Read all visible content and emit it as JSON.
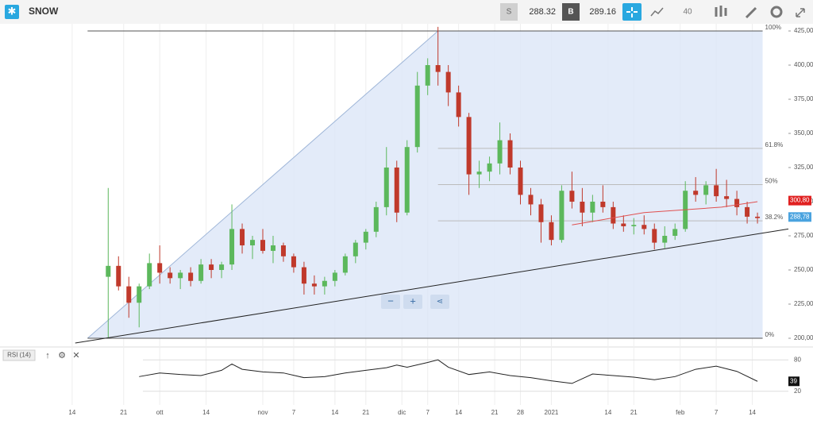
{
  "header": {
    "symbol": "SNOW",
    "sell_label": "S",
    "sell_price": 288.32,
    "buy_label": "B",
    "buy_price": 289.16,
    "interval": "40"
  },
  "chart": {
    "xlim": [
      0,
      153
    ],
    "ylim": [
      200,
      425
    ],
    "yticks": [
      {
        "value": 425,
        "label": "425,00"
      },
      {
        "value": 400,
        "label": "400,00"
      },
      {
        "value": 375,
        "label": "375,00"
      },
      {
        "value": 350,
        "label": "350,00"
      },
      {
        "value": 325,
        "label": "325,00"
      },
      {
        "value": 300,
        "label": "300,00"
      },
      {
        "value": 275,
        "label": "275,00"
      },
      {
        "value": 250,
        "label": "250,00"
      },
      {
        "value": 225,
        "label": "225,00"
      },
      {
        "value": 200,
        "label": "200,00"
      }
    ],
    "xticks": [
      {
        "value": 14,
        "label": "14"
      },
      {
        "value": 24,
        "label": "21"
      },
      {
        "value": 31,
        "label": "ott"
      },
      {
        "value": 40,
        "label": "14"
      },
      {
        "value": 51,
        "label": "nov"
      },
      {
        "value": 57,
        "label": "7"
      },
      {
        "value": 65,
        "label": "14"
      },
      {
        "value": 71,
        "label": "21"
      },
      {
        "value": 78,
        "label": "dic"
      },
      {
        "value": 83,
        "label": "7"
      },
      {
        "value": 89,
        "label": "14"
      },
      {
        "value": 96,
        "label": "21"
      },
      {
        "value": 101,
        "label": "28"
      },
      {
        "value": 107,
        "label": "2021"
      },
      {
        "value": 118,
        "label": "14"
      },
      {
        "value": 123,
        "label": "21"
      },
      {
        "value": 132,
        "label": "feb"
      },
      {
        "value": 139,
        "label": "7"
      },
      {
        "value": 146,
        "label": "14"
      }
    ],
    "candles": [
      {
        "x": 21,
        "o": 245,
        "h": 310,
        "l": 200,
        "c": 253
      },
      {
        "x": 23,
        "o": 253,
        "h": 260,
        "l": 235,
        "c": 238
      },
      {
        "x": 25,
        "o": 238,
        "h": 245,
        "l": 215,
        "c": 226
      },
      {
        "x": 27,
        "o": 226,
        "h": 240,
        "l": 208,
        "c": 238
      },
      {
        "x": 29,
        "o": 238,
        "h": 262,
        "l": 236,
        "c": 255
      },
      {
        "x": 31,
        "o": 255,
        "h": 268,
        "l": 240,
        "c": 248
      },
      {
        "x": 33,
        "o": 248,
        "h": 252,
        "l": 240,
        "c": 244
      },
      {
        "x": 35,
        "o": 244,
        "h": 250,
        "l": 236,
        "c": 248
      },
      {
        "x": 37,
        "o": 248,
        "h": 252,
        "l": 238,
        "c": 242
      },
      {
        "x": 39,
        "o": 242,
        "h": 258,
        "l": 240,
        "c": 254
      },
      {
        "x": 41,
        "o": 254,
        "h": 258,
        "l": 244,
        "c": 250
      },
      {
        "x": 43,
        "o": 250,
        "h": 256,
        "l": 244,
        "c": 254
      },
      {
        "x": 45,
        "o": 254,
        "h": 298,
        "l": 250,
        "c": 280
      },
      {
        "x": 47,
        "o": 280,
        "h": 284,
        "l": 262,
        "c": 268
      },
      {
        "x": 49,
        "o": 268,
        "h": 275,
        "l": 258,
        "c": 272
      },
      {
        "x": 51,
        "o": 272,
        "h": 280,
        "l": 262,
        "c": 264
      },
      {
        "x": 53,
        "o": 264,
        "h": 275,
        "l": 255,
        "c": 268
      },
      {
        "x": 55,
        "o": 268,
        "h": 270,
        "l": 256,
        "c": 260
      },
      {
        "x": 57,
        "o": 260,
        "h": 262,
        "l": 248,
        "c": 252
      },
      {
        "x": 59,
        "o": 252,
        "h": 256,
        "l": 232,
        "c": 240
      },
      {
        "x": 61,
        "o": 240,
        "h": 246,
        "l": 232,
        "c": 238
      },
      {
        "x": 63,
        "o": 238,
        "h": 245,
        "l": 232,
        "c": 242
      },
      {
        "x": 65,
        "o": 242,
        "h": 250,
        "l": 238,
        "c": 248
      },
      {
        "x": 67,
        "o": 248,
        "h": 262,
        "l": 246,
        "c": 260
      },
      {
        "x": 69,
        "o": 260,
        "h": 272,
        "l": 255,
        "c": 270
      },
      {
        "x": 71,
        "o": 270,
        "h": 280,
        "l": 265,
        "c": 278
      },
      {
        "x": 73,
        "o": 278,
        "h": 300,
        "l": 274,
        "c": 296
      },
      {
        "x": 75,
        "o": 296,
        "h": 340,
        "l": 290,
        "c": 325
      },
      {
        "x": 77,
        "o": 325,
        "h": 330,
        "l": 285,
        "c": 292
      },
      {
        "x": 79,
        "o": 292,
        "h": 345,
        "l": 290,
        "c": 340
      },
      {
        "x": 81,
        "o": 340,
        "h": 395,
        "l": 336,
        "c": 385
      },
      {
        "x": 83,
        "o": 385,
        "h": 405,
        "l": 378,
        "c": 400
      },
      {
        "x": 85,
        "o": 400,
        "h": 428,
        "l": 385,
        "c": 395
      },
      {
        "x": 87,
        "o": 395,
        "h": 400,
        "l": 370,
        "c": 380
      },
      {
        "x": 89,
        "o": 380,
        "h": 385,
        "l": 355,
        "c": 362
      },
      {
        "x": 91,
        "o": 362,
        "h": 365,
        "l": 305,
        "c": 320
      },
      {
        "x": 93,
        "o": 320,
        "h": 330,
        "l": 310,
        "c": 322
      },
      {
        "x": 95,
        "o": 322,
        "h": 333,
        "l": 315,
        "c": 328
      },
      {
        "x": 97,
        "o": 328,
        "h": 358,
        "l": 320,
        "c": 345
      },
      {
        "x": 99,
        "o": 345,
        "h": 350,
        "l": 320,
        "c": 325
      },
      {
        "x": 101,
        "o": 325,
        "h": 330,
        "l": 298,
        "c": 305
      },
      {
        "x": 103,
        "o": 305,
        "h": 310,
        "l": 290,
        "c": 298
      },
      {
        "x": 105,
        "o": 298,
        "h": 302,
        "l": 270,
        "c": 285
      },
      {
        "x": 107,
        "o": 285,
        "h": 290,
        "l": 268,
        "c": 272
      },
      {
        "x": 109,
        "o": 272,
        "h": 312,
        "l": 270,
        "c": 308
      },
      {
        "x": 111,
        "o": 308,
        "h": 322,
        "l": 295,
        "c": 300
      },
      {
        "x": 113,
        "o": 300,
        "h": 310,
        "l": 282,
        "c": 292
      },
      {
        "x": 115,
        "o": 292,
        "h": 305,
        "l": 285,
        "c": 300
      },
      {
        "x": 117,
        "o": 300,
        "h": 312,
        "l": 292,
        "c": 296
      },
      {
        "x": 119,
        "o": 296,
        "h": 300,
        "l": 280,
        "c": 284
      },
      {
        "x": 121,
        "o": 284,
        "h": 290,
        "l": 278,
        "c": 282
      },
      {
        "x": 123,
        "o": 282,
        "h": 288,
        "l": 276,
        "c": 283
      },
      {
        "x": 125,
        "o": 283,
        "h": 290,
        "l": 276,
        "c": 280
      },
      {
        "x": 127,
        "o": 280,
        "h": 284,
        "l": 265,
        "c": 270
      },
      {
        "x": 129,
        "o": 270,
        "h": 282,
        "l": 266,
        "c": 275
      },
      {
        "x": 131,
        "o": 275,
        "h": 284,
        "l": 272,
        "c": 280
      },
      {
        "x": 133,
        "o": 280,
        "h": 315,
        "l": 278,
        "c": 308
      },
      {
        "x": 135,
        "o": 308,
        "h": 318,
        "l": 300,
        "c": 305
      },
      {
        "x": 137,
        "o": 305,
        "h": 315,
        "l": 298,
        "c": 312
      },
      {
        "x": 139,
        "o": 312,
        "h": 324,
        "l": 300,
        "c": 304
      },
      {
        "x": 141,
        "o": 304,
        "h": 316,
        "l": 296,
        "c": 302
      },
      {
        "x": 143,
        "o": 302,
        "h": 308,
        "l": 290,
        "c": 296
      },
      {
        "x": 145,
        "o": 296,
        "h": 300,
        "l": 284,
        "c": 289
      },
      {
        "x": 147,
        "o": 289,
        "h": 292,
        "l": 284,
        "c": 288
      }
    ],
    "up_color": "#5cb85c",
    "down_color": "#c0392b",
    "moving_average": {
      "color": "#e05050",
      "x": [
        111,
        125,
        140,
        147
      ],
      "values": [
        283,
        292,
        296,
        300
      ]
    },
    "trendline": {
      "x": [
        14.6,
        153
      ],
      "values": [
        196.5,
        280
      ]
    },
    "fib": {
      "from": [
        17,
        200
      ],
      "to": [
        85,
        425
      ],
      "end_x": 148,
      "levels": [
        {
          "value": 425,
          "label": "100%"
        },
        {
          "value": 339,
          "label": "61.8%"
        },
        {
          "value": 312.5,
          "label": "50%"
        },
        {
          "value": 286,
          "label": "38.2%"
        },
        {
          "value": 200,
          "label": "0%"
        }
      ]
    },
    "price_tags": [
      {
        "value": 300.8,
        "label": "300,80",
        "color": "#e02020"
      },
      {
        "value": 288.78,
        "label": "288,78",
        "color": "#4aa3df"
      }
    ],
    "rsi": {
      "title": "RSI (14)",
      "ylim": [
        0,
        100
      ],
      "yticks": [
        80,
        20
      ],
      "current": 39,
      "x": [
        27,
        31,
        35,
        39,
        43,
        45,
        47,
        51,
        55,
        59,
        63,
        67,
        71,
        75,
        77,
        79,
        83,
        85,
        87,
        91,
        95,
        99,
        103,
        107,
        111,
        115,
        119,
        123,
        127,
        131,
        135,
        139,
        143,
        147
      ],
      "values": [
        48,
        55,
        52,
        50,
        60,
        72,
        62,
        57,
        55,
        46,
        48,
        55,
        60,
        65,
        70,
        66,
        75,
        80,
        66,
        52,
        57,
        50,
        46,
        40,
        35,
        53,
        50,
        47,
        42,
        48,
        62,
        68,
        58,
        39
      ]
    }
  }
}
